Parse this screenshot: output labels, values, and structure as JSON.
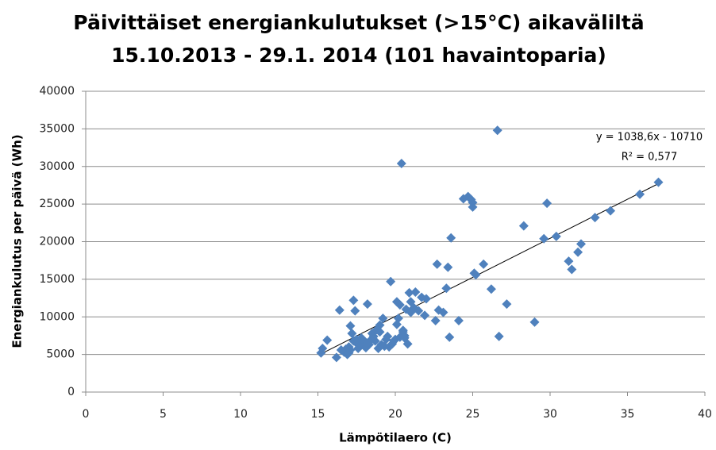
{
  "chart_data": {
    "type": "scatter",
    "title": "Päivittäiset energiankulutukset (>15°C) aikaväliltä",
    "subtitle": "15.10.2013 - 29.1. 2014 (101 havaintoparia)",
    "x_label": "Lämpötilaero (C)",
    "y_label": "Energiankulutus per päivä (Wh)",
    "xlim": [
      0,
      40
    ],
    "xticks": [
      0,
      5,
      10,
      15,
      20,
      25,
      30,
      35,
      40
    ],
    "ylim": [
      0,
      40000
    ],
    "yticks": [
      0,
      5000,
      10000,
      15000,
      20000,
      25000,
      30000,
      35000,
      40000
    ],
    "grid": true,
    "color": "#4f81bd",
    "x": [
      15.3,
      15.2,
      15.6,
      16.2,
      16.4,
      16.7,
      16.9,
      17.0,
      17.1,
      17.2,
      17.3,
      17.4,
      17.5,
      17.6,
      17.8,
      18.0,
      18.2,
      18.3,
      18.5,
      18.7,
      18.9,
      19.0,
      19.2,
      19.4,
      19.6,
      19.7,
      19.8,
      20.0,
      20.1,
      20.2,
      20.3,
      20.4,
      20.5,
      20.6,
      20.7,
      20.8,
      20.9,
      21.0,
      21.2,
      21.3,
      21.5,
      21.7,
      21.9,
      22.6,
      22.7,
      22.8,
      23.3,
      23.4,
      23.5,
      23.6,
      24.1,
      24.4,
      24.7,
      24.9,
      25.0,
      25.1,
      25.2,
      25.7,
      26.2,
      26.6,
      26.7,
      27.2,
      28.3,
      29.0,
      29.6,
      29.8,
      30.4,
      31.2,
      31.4,
      31.8,
      32.0,
      32.9,
      33.9,
      35.8,
      37.0,
      16.8,
      17.0,
      17.3,
      17.7,
      18.1,
      18.4,
      18.6,
      19.1,
      19.3,
      19.5,
      19.9,
      20.3,
      20.5,
      20.6,
      17.9,
      18.8,
      19.0,
      16.5,
      17.1,
      18.2,
      20.1,
      21.0,
      22.0,
      23.1,
      25.0,
      17.5
    ],
    "values": [
      5800,
      5200,
      6900,
      4600,
      10900,
      5300,
      5000,
      6000,
      8800,
      7800,
      12200,
      10800,
      6500,
      5800,
      7200,
      6100,
      11700,
      6300,
      7800,
      6800,
      5800,
      8900,
      9800,
      7000,
      6000,
      14700,
      6400,
      7000,
      12000,
      9800,
      11600,
      30400,
      8200,
      7500,
      11000,
      6400,
      13200,
      12000,
      11200,
      13300,
      10800,
      12600,
      10200,
      9500,
      17000,
      10900,
      13800,
      16600,
      7300,
      20500,
      9500,
      25700,
      26000,
      25600,
      24600,
      15800,
      15600,
      17000,
      13700,
      34800,
      7400,
      11700,
      22100,
      9300,
      20400,
      25100,
      20700,
      17400,
      16300,
      18600,
      19700,
      23200,
      24100,
      26300,
      27900,
      5700,
      5200,
      6800,
      6200,
      5900,
      6900,
      7400,
      6300,
      6100,
      7400,
      6800,
      7300,
      8000,
      7200,
      7000,
      8300,
      8000,
      5600,
      5600,
      6500,
      9000,
      10600,
      12400,
      10600,
      25200,
      7000
    ],
    "trendline": {
      "slope": 1038.6,
      "intercept": -10710,
      "equation": "y = 1038,6x - 10710",
      "r_squared": "R² = 0,577"
    }
  }
}
